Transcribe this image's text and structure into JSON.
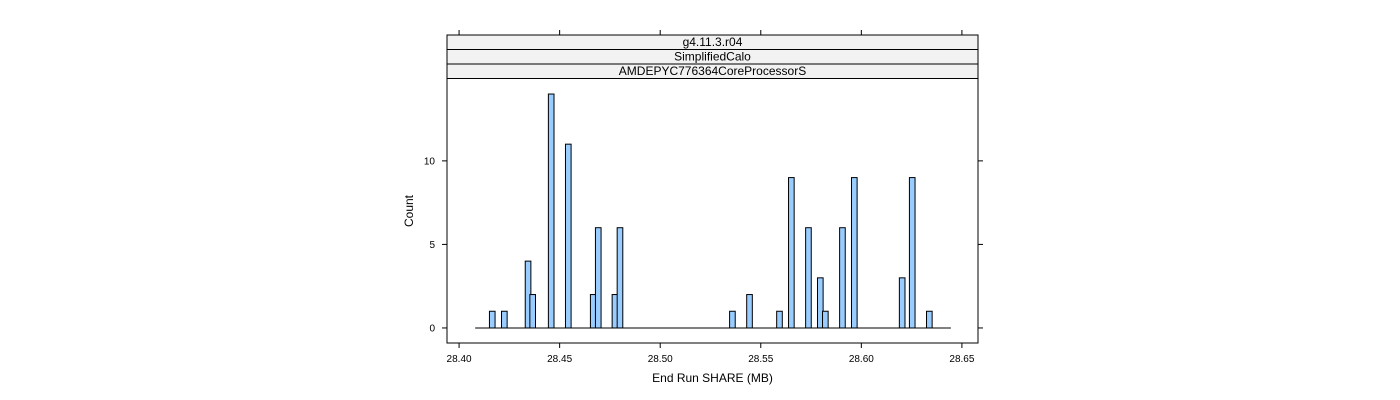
{
  "chart_data": {
    "type": "bar",
    "strips": [
      "g4.11.3.r04",
      "SimplifiedCalo",
      "AMDEPYC776364CoreProcessorS"
    ],
    "xlabel": "End Run SHARE (MB)",
    "ylabel": "Count",
    "xlim": [
      28.394,
      28.658
    ],
    "ylim": [
      -0.9,
      14.9
    ],
    "x_ticks": [
      {
        "value": 28.4,
        "label": "28.40"
      },
      {
        "value": 28.45,
        "label": "28.45"
      },
      {
        "value": 28.5,
        "label": "28.50"
      },
      {
        "value": 28.55,
        "label": "28.55"
      },
      {
        "value": 28.6,
        "label": "28.60"
      },
      {
        "value": 28.65,
        "label": "28.65"
      }
    ],
    "y_ticks": [
      {
        "value": 0,
        "label": "0"
      },
      {
        "value": 5,
        "label": "5"
      },
      {
        "value": 10,
        "label": "10"
      }
    ],
    "baseline_range": [
      28.408,
      28.6445
    ],
    "bin_width": 0.0028,
    "bars": [
      {
        "x": 28.4165,
        "count": 1
      },
      {
        "x": 28.4225,
        "count": 1
      },
      {
        "x": 28.4343,
        "count": 4
      },
      {
        "x": 28.4366,
        "count": 2
      },
      {
        "x": 28.4458,
        "count": 14
      },
      {
        "x": 28.4543,
        "count": 11
      },
      {
        "x": 28.4667,
        "count": 2
      },
      {
        "x": 28.4692,
        "count": 6
      },
      {
        "x": 28.4775,
        "count": 2
      },
      {
        "x": 28.48,
        "count": 6
      },
      {
        "x": 28.5359,
        "count": 1
      },
      {
        "x": 28.5444,
        "count": 2
      },
      {
        "x": 28.5593,
        "count": 1
      },
      {
        "x": 28.5652,
        "count": 9
      },
      {
        "x": 28.5737,
        "count": 6
      },
      {
        "x": 28.5796,
        "count": 3
      },
      {
        "x": 28.5821,
        "count": 1
      },
      {
        "x": 28.5906,
        "count": 6
      },
      {
        "x": 28.5965,
        "count": 9
      },
      {
        "x": 28.6203,
        "count": 3
      },
      {
        "x": 28.6253,
        "count": 9
      },
      {
        "x": 28.6338,
        "count": 1
      }
    ],
    "bar_fill": "#99ccff",
    "strip_fill": "#f2f2f2",
    "grid": false
  }
}
